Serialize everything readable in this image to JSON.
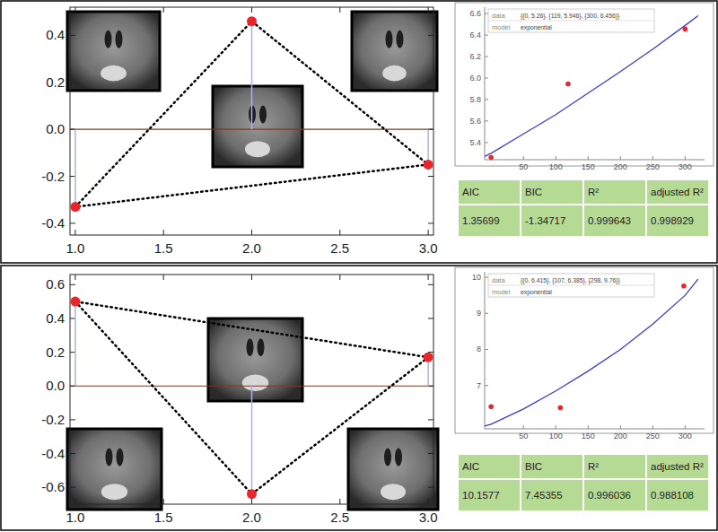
{
  "chart_data": [
    {
      "type": "stem",
      "marker": "circle",
      "line_style": "dotted",
      "color": "#e8262b",
      "x": [
        1,
        2,
        3
      ],
      "values": [
        -0.33,
        0.46,
        -0.15
      ],
      "xlim": [
        0.97,
        3.03
      ],
      "ylim": [
        -0.45,
        0.52
      ],
      "xticks": [
        {
          "value": 1,
          "label": "1.0"
        },
        {
          "value": 1.5,
          "label": "1.5"
        },
        {
          "value": 2,
          "label": "2.0"
        },
        {
          "value": 2.5,
          "label": "2.5"
        },
        {
          "value": 3,
          "label": "3.0"
        }
      ],
      "yticks": [
        {
          "value": -0.4,
          "label": "-0.4"
        },
        {
          "value": -0.2,
          "label": "-0.2"
        },
        {
          "value": 0,
          "label": "0.0"
        },
        {
          "value": 0.2,
          "label": "0.2"
        },
        {
          "value": 0.4,
          "label": "0.4"
        }
      ]
    },
    {
      "type": "scatter",
      "annotations": [
        {
          "label": "data",
          "text": "{{0, 5.26}, {119, 5.946}, {300, 6.456}}"
        },
        {
          "label": "model",
          "text": "exponential"
        }
      ],
      "series": [
        {
          "type": "scatter",
          "marker": "circle",
          "color": "#e8262b",
          "x": [
            0,
            119,
            300
          ],
          "values": [
            5.26,
            5.946,
            6.456
          ]
        },
        {
          "type": "line",
          "color": "#3b3bd0",
          "x": [
            -10,
            0,
            50,
            100,
            150,
            200,
            250,
            300,
            320
          ],
          "values": [
            5.27,
            5.3,
            5.48,
            5.66,
            5.86,
            6.06,
            6.27,
            6.49,
            6.58
          ]
        }
      ],
      "xlim": [
        -10,
        330
      ],
      "ylim": [
        5.24,
        6.66
      ],
      "xticks": [
        50,
        100,
        150,
        200,
        250,
        300
      ],
      "yticks": [
        5.4,
        5.6,
        5.8,
        {
          "value": 6,
          "label": "6.0"
        },
        6.2,
        6.4,
        6.6
      ],
      "table": {
        "columns": [
          "AIC",
          "BIC",
          "R²",
          "adjusted R²"
        ],
        "rows": [
          [
            1.35699,
            -1.34717,
            0.999643,
            0.998929
          ]
        ]
      }
    },
    {
      "type": "stem",
      "marker": "circle",
      "line_style": "dotted",
      "color": "#e8262b",
      "x": [
        1,
        2,
        3
      ],
      "values": [
        0.5,
        -0.64,
        0.17
      ],
      "xlim": [
        0.97,
        3.03
      ],
      "ylim": [
        -0.7,
        0.66
      ],
      "xticks": [
        {
          "value": 1,
          "label": "1.0"
        },
        {
          "value": 1.5,
          "label": "1.5"
        },
        {
          "value": 2,
          "label": "2.0"
        },
        {
          "value": 2.5,
          "label": "2.5"
        },
        {
          "value": 3,
          "label": "3.0"
        }
      ],
      "yticks": [
        {
          "value": -0.6,
          "label": "-0.6"
        },
        {
          "value": -0.4,
          "label": "-0.4"
        },
        {
          "value": -0.2,
          "label": "-0.2"
        },
        {
          "value": 0,
          "label": "0.0"
        },
        {
          "value": 0.2,
          "label": "0.2"
        },
        {
          "value": 0.4,
          "label": "0.4"
        },
        {
          "value": 0.6,
          "label": "0.6"
        }
      ]
    },
    {
      "type": "scatter",
      "annotations": [
        {
          "label": "data",
          "text": "{{0, 6.415}, {107, 6.385}, {298, 9.76}}"
        },
        {
          "label": "model",
          "text": "exponential"
        }
      ],
      "series": [
        {
          "type": "scatter",
          "marker": "circle",
          "color": "#e8262b",
          "x": [
            0,
            107,
            298
          ],
          "values": [
            6.415,
            6.385,
            9.76
          ]
        },
        {
          "type": "line",
          "color": "#3b3bd0",
          "x": [
            -10,
            0,
            50,
            100,
            150,
            200,
            250,
            300,
            320
          ],
          "values": [
            5.88,
            5.93,
            6.35,
            6.85,
            7.4,
            8.0,
            8.7,
            9.5,
            9.95
          ]
        }
      ],
      "xlim": [
        -10,
        330
      ],
      "ylim": [
        5.8,
        10.15
      ],
      "xticks": [
        50,
        100,
        150,
        200,
        250,
        300
      ],
      "yticks": [
        7,
        8,
        9,
        10
      ],
      "table": {
        "columns": [
          "AIC",
          "BIC",
          "R²",
          "adjusted R²"
        ],
        "rows": [
          [
            10.1577,
            7.45355,
            0.996036,
            0.988108
          ]
        ]
      }
    }
  ]
}
